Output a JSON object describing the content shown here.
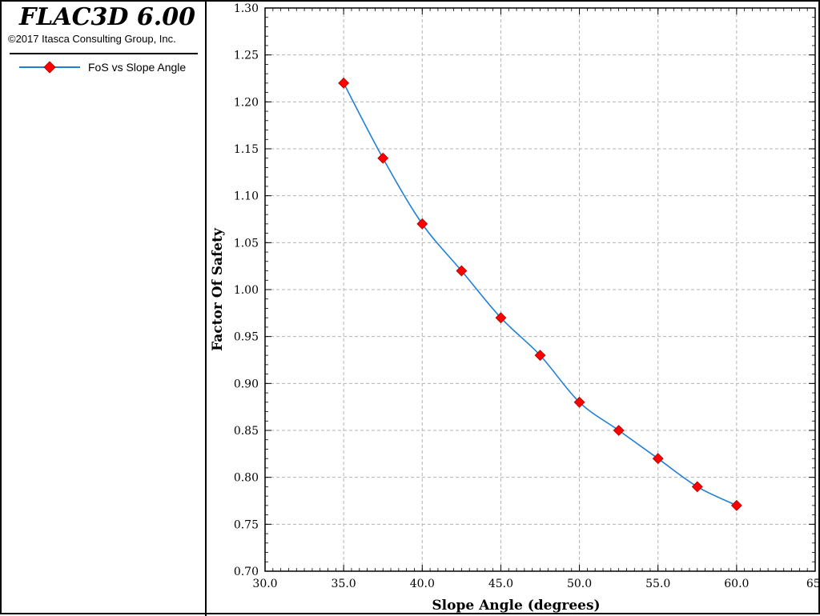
{
  "header": {
    "app_title": "FLAC3D 6.00",
    "copyright": "©2017 Itasca Consulting Group, Inc."
  },
  "legend": {
    "label": "FoS vs Slope Angle"
  },
  "colors": {
    "line": "#1f7fd6",
    "marker": "#ff0000",
    "marker_edge": "#b00000",
    "grid": "#b4b4b4"
  },
  "chart_data": {
    "type": "line",
    "xlabel": "Slope Angle (degrees)",
    "ylabel": "Factor Of Safety",
    "xlim": [
      30,
      65
    ],
    "ylim": [
      0.7,
      1.3
    ],
    "x_ticks": [
      30,
      35,
      40,
      45,
      50,
      55,
      60,
      65
    ],
    "x_tick_labels": [
      "30.0",
      "35.0",
      "40.0",
      "45.0",
      "50.0",
      "55.0",
      "60.0",
      "65."
    ],
    "y_ticks": [
      0.7,
      0.75,
      0.8,
      0.85,
      0.9,
      0.95,
      1.0,
      1.05,
      1.1,
      1.15,
      1.2,
      1.25,
      1.3
    ],
    "y_tick_labels": [
      "0.70",
      "0.75",
      "0.80",
      "0.85",
      "0.90",
      "0.95",
      "1.00",
      "1.05",
      "1.10",
      "1.15",
      "1.20",
      "1.25",
      "1.30"
    ],
    "grid": true,
    "series": [
      {
        "name": "FoS vs Slope Angle",
        "x": [
          35,
          37.5,
          40,
          42.5,
          45,
          47.5,
          50,
          52.5,
          55,
          57.5,
          60
        ],
        "y": [
          1.22,
          1.14,
          1.07,
          1.02,
          0.97,
          0.93,
          0.88,
          0.85,
          0.82,
          0.79,
          0.77
        ]
      }
    ]
  }
}
